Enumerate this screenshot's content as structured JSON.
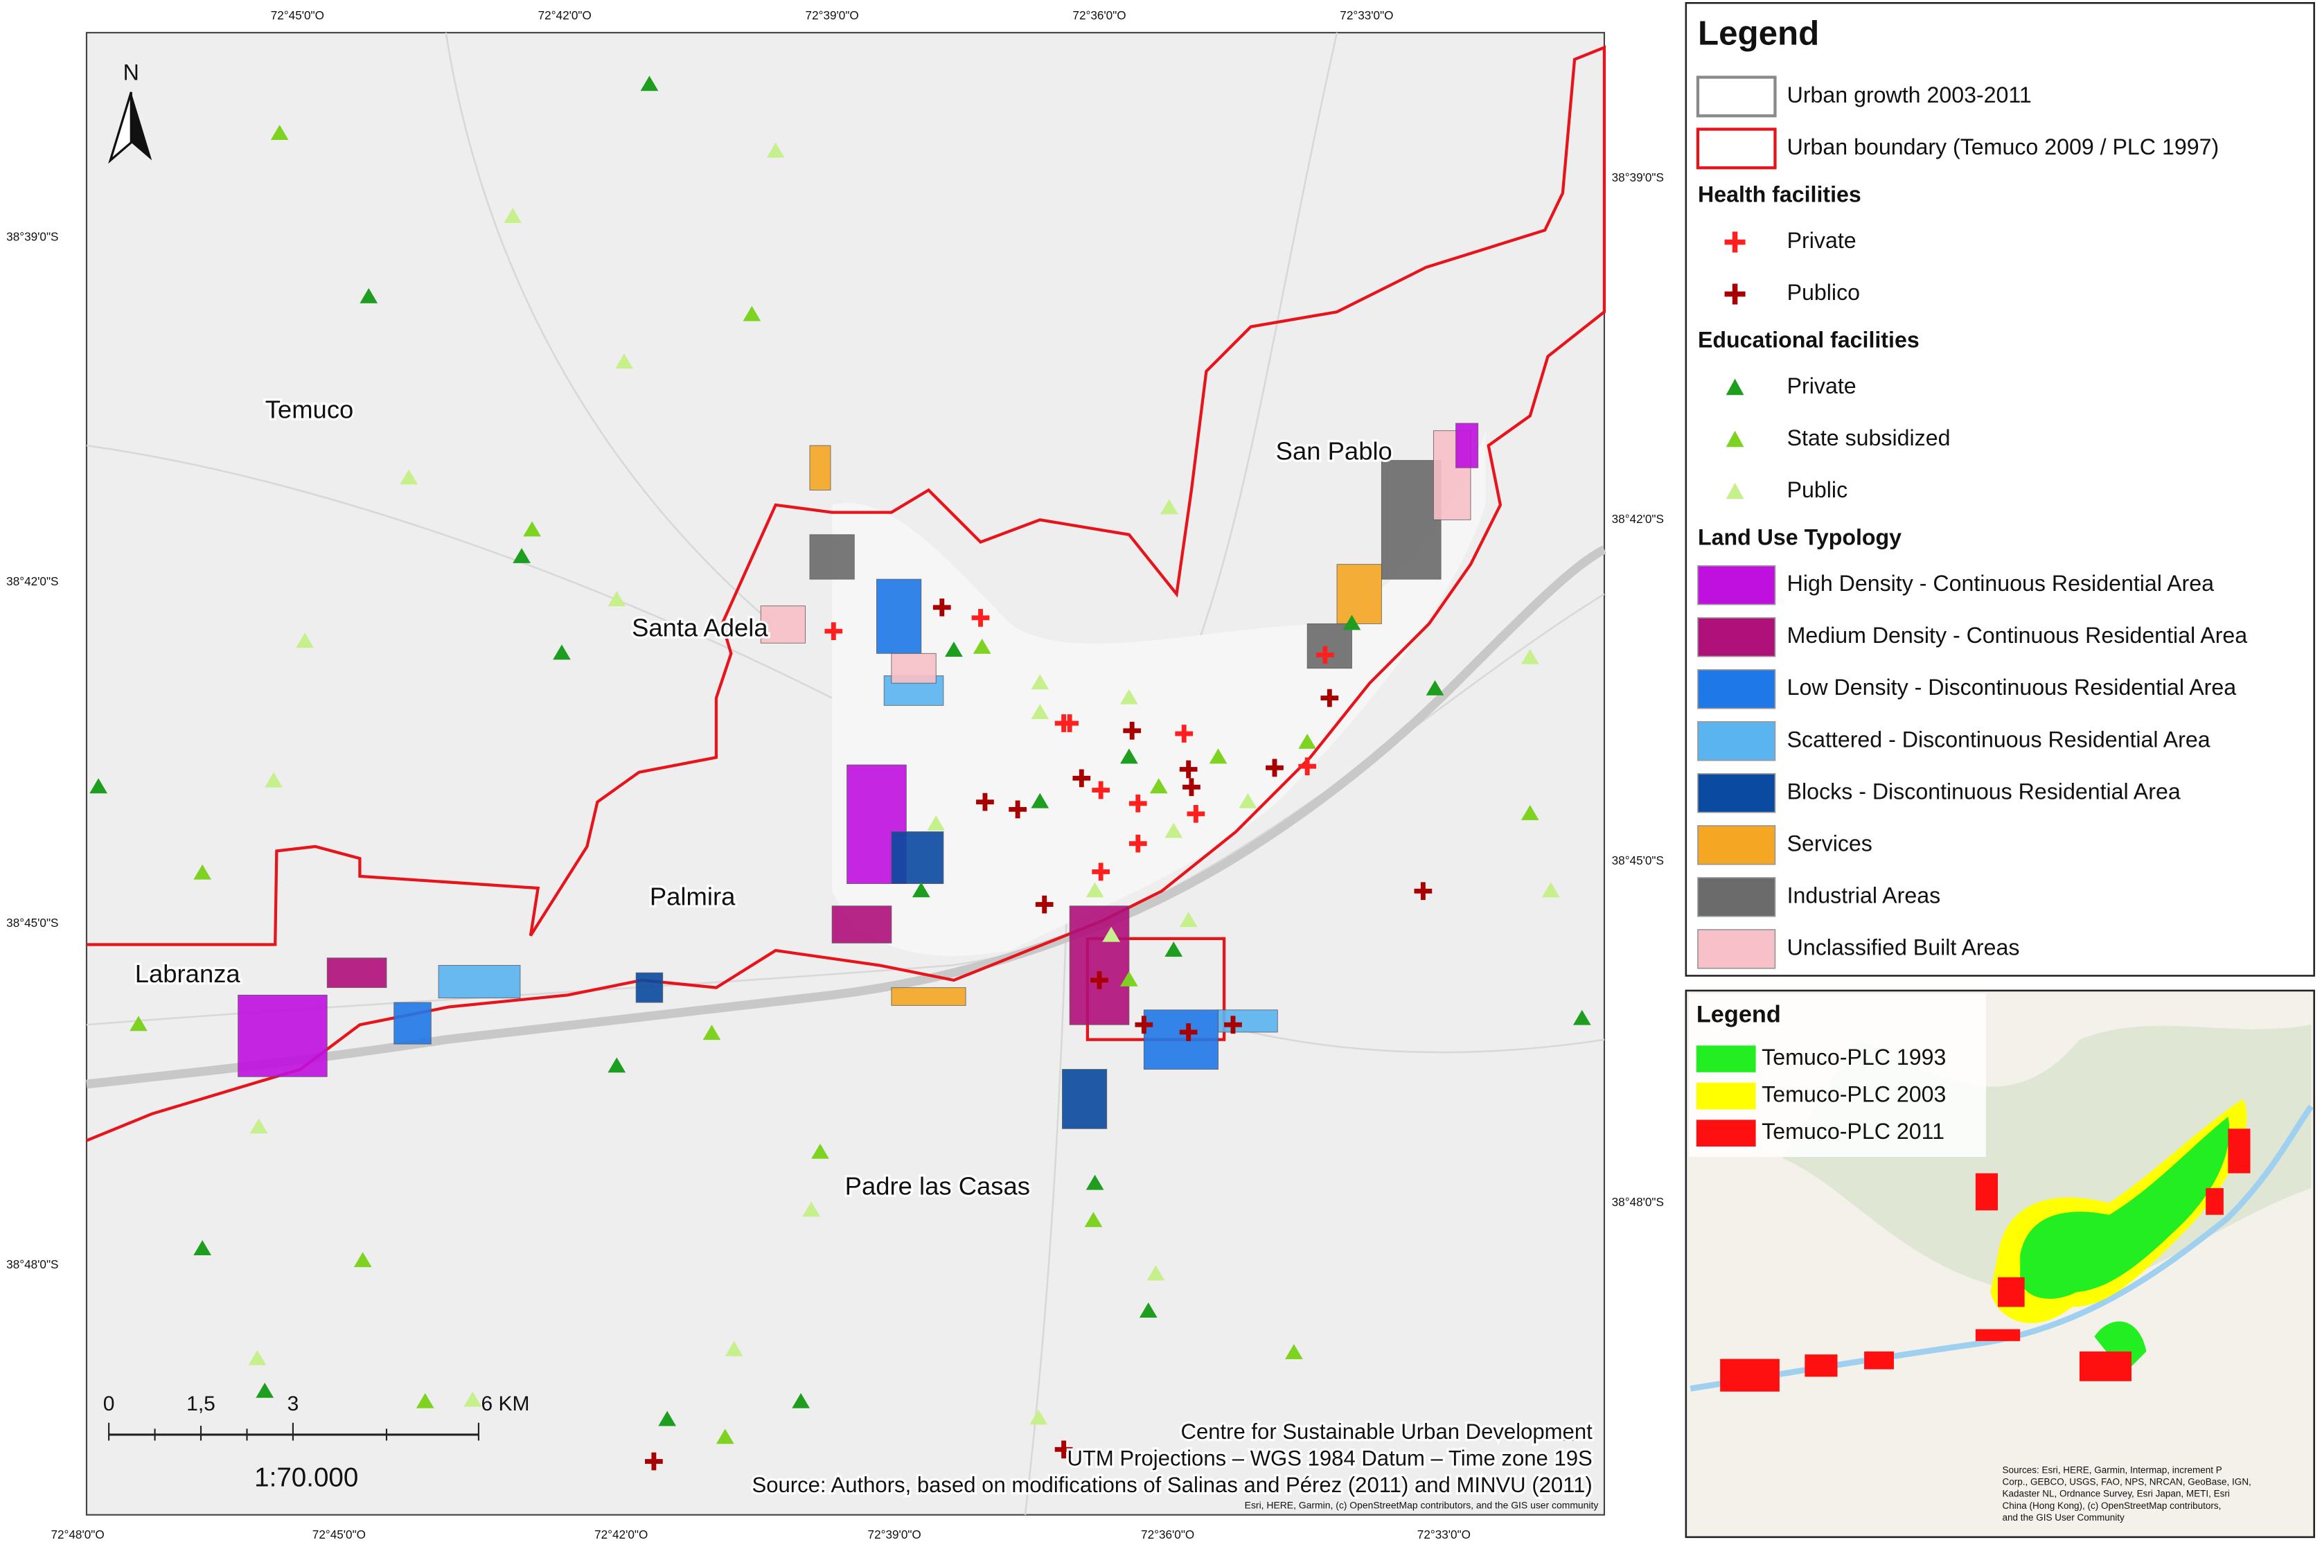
{
  "map": {
    "north": "N",
    "places": [
      "Temuco",
      "San Pablo",
      "Santa Adela",
      "Palmira",
      "Labranza",
      "Padre las Casas"
    ],
    "top_coords": [
      "72°45'0\"O",
      "72°42'0\"O",
      "72°39'0\"O",
      "72°36'0\"O",
      "72°33'0\"O"
    ],
    "bottom_coords": [
      "72°48'0\"O",
      "72°45'0\"O",
      "72°42'0\"O",
      "72°39'0\"O",
      "72°36'0\"O",
      "72°33'0\"O"
    ],
    "left_coords": [
      "38°39'0\"S",
      "38°42'0\"S",
      "38°45'0\"S",
      "38°48'0\"S"
    ],
    "right_coords": [
      "38°39'0\"S",
      "38°42'0\"S",
      "38°45'0\"S",
      "38°48'0\"S"
    ],
    "scale_bar": {
      "ticks": [
        "0",
        "1,5",
        "3",
        "6 KM"
      ],
      "ratio": "1:70.000"
    },
    "credits": [
      "Centre for Sustainable Urban Development",
      "UTM Projections – WGS 1984 Datum – Time zone 19S",
      "Source: Authors, based on modifications of Salinas and Pérez (2011) and MINVU (2011)"
    ],
    "basemap_attribution": "Esri, HERE, Garmin, (c) OpenStreetMap contributors, and the GIS user community"
  },
  "legend": {
    "title": "Legend",
    "boundaries": [
      {
        "label": "Urban growth 2003-2011",
        "stroke": "#8a8a8a"
      },
      {
        "label": "Urban boundary (Temuco 2009 / PLC 1997)",
        "stroke": "#e8141b"
      }
    ],
    "groups": [
      {
        "heading": "Health facilities",
        "symbol": "cross",
        "items": [
          {
            "label": "Private",
            "color": "#ff1f1f"
          },
          {
            "label": "Publico",
            "color": "#a80000"
          }
        ]
      },
      {
        "heading": "Educational facilities",
        "symbol": "triangle",
        "items": [
          {
            "label": "Private",
            "color": "#1e9e1e"
          },
          {
            "label": "State subsidized",
            "color": "#7ed321"
          },
          {
            "label": "Public",
            "color": "#c6f08c"
          }
        ]
      },
      {
        "heading": "Land Use Typology",
        "symbol": "square",
        "items": [
          {
            "label": "High Density - Continuous Residential Area",
            "color": "#c010e0"
          },
          {
            "label": "Medium Density - Continuous Residential Area",
            "color": "#b0107a"
          },
          {
            "label": "Low Density - Discontinuous Residential Area",
            "color": "#1f78e8"
          },
          {
            "label": "Scattered - Discontinuous Residential Area",
            "color": "#5ab4f0"
          },
          {
            "label": "Blocks - Discontinuous Residential Area",
            "color": "#0a4aa0"
          },
          {
            "label": "Services",
            "color": "#f5a623"
          },
          {
            "label": "Industrial Areas",
            "color": "#6b6b6b"
          },
          {
            "label": "Unclassified Built Areas",
            "color": "#f8c0c8"
          }
        ]
      }
    ]
  },
  "inset": {
    "title": "Legend",
    "items": [
      {
        "label": "Temuco-PLC 1993",
        "color": "#22ee22"
      },
      {
        "label": "Temuco-PLC 2003",
        "color": "#ffff00"
      },
      {
        "label": "Temuco-PLC 2011",
        "color": "#ff1010"
      }
    ],
    "attribution": "Sources: Esri, HERE, Garmin, Intermap, increment P Corp., GEBCO, USGS, FAO, NPS, NRCAN, GeoBase, IGN, Kadaster NL, Ordnance Survey, Esri Japan, METI, Esri China (Hong Kong), (c) OpenStreetMap contributors, and the GIS User Community"
  }
}
